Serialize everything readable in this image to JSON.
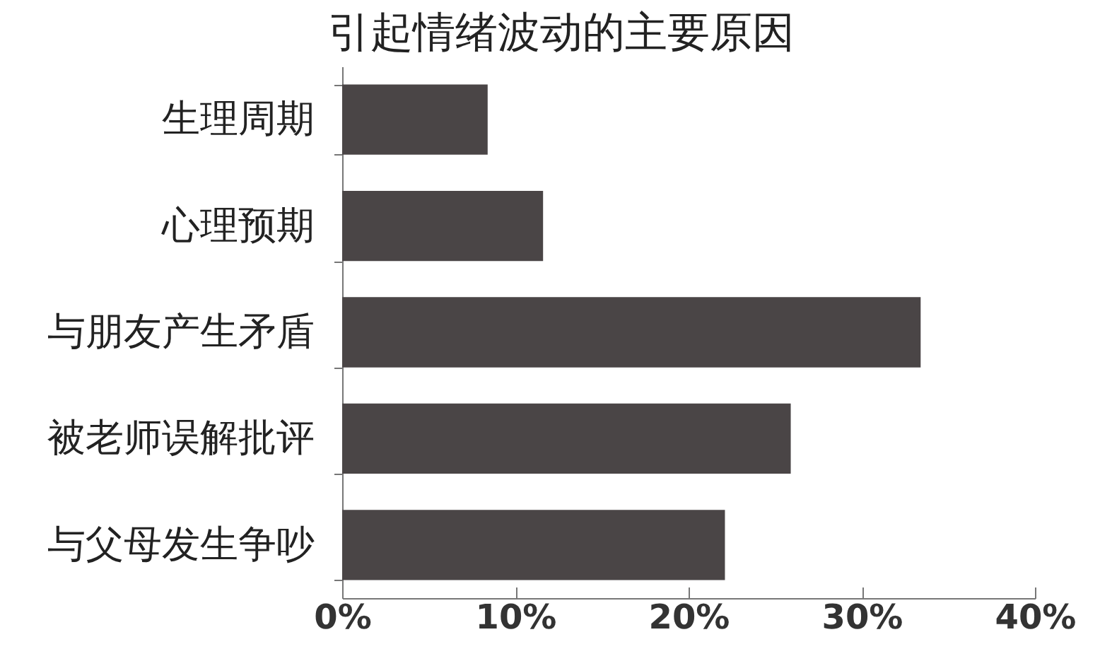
{
  "chart_data": {
    "type": "bar",
    "orientation": "horizontal",
    "title": "引起情绪波动的主要原因",
    "categories": [
      "生理周期",
      "心理预期",
      "与朋友产生矛盾",
      "被老师误解批评",
      "与父母发生争吵"
    ],
    "values": [
      8.4,
      11.6,
      33.4,
      25.9,
      22.1
    ],
    "color": "#4a4546",
    "xlim": [
      0,
      40
    ],
    "xticks": [
      {
        "value": 0,
        "label": "0%"
      },
      {
        "value": 10,
        "label": "10%"
      },
      {
        "value": 20,
        "label": "20%"
      },
      {
        "value": 30,
        "label": "30%"
      },
      {
        "value": 40,
        "label": "40%"
      }
    ],
    "grid": false
  }
}
